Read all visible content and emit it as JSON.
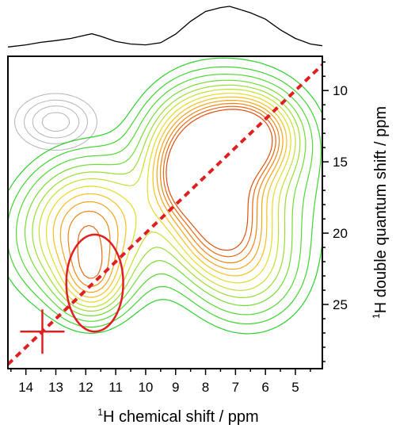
{
  "chart_data": {
    "type": "contour",
    "xlabel_prefix": "1",
    "xlabel": "H chemical shift / ppm",
    "ylabel_prefix": "1",
    "ylabel": "H double quantum shift / ppm",
    "x_range": [
      14.6,
      4.1
    ],
    "y_range": [
      7.6,
      29.5
    ],
    "x_ticks": [
      14,
      13,
      12,
      11,
      10,
      9,
      8,
      7,
      6,
      5
    ],
    "y_ticks": [
      10,
      15,
      20,
      25
    ],
    "diagonal": {
      "label": "DQ = 2 × SQ",
      "color": "#e02020"
    },
    "circle": {
      "center": [
        11.7,
        23.5
      ],
      "radius_ppm_x": 0.95,
      "radius_ppm_y": 3.4,
      "color": "#e02020"
    },
    "cross": {
      "center": [
        13.45,
        26.9
      ],
      "color": "#e02020"
    },
    "top_projection": {
      "x": [
        14.6,
        14.0,
        13.5,
        13.0,
        12.5,
        12.0,
        11.8,
        11.5,
        11.0,
        10.5,
        10.0,
        9.5,
        9.0,
        8.5,
        8.0,
        7.5,
        7.2,
        7.0,
        6.5,
        6.0,
        5.5,
        5.0,
        4.5,
        4.1
      ],
      "y": [
        0.05,
        0.1,
        0.16,
        0.2,
        0.25,
        0.33,
        0.36,
        0.3,
        0.18,
        0.12,
        0.1,
        0.15,
        0.35,
        0.65,
        0.88,
        0.97,
        1.0,
        0.96,
        0.85,
        0.7,
        0.45,
        0.25,
        0.12,
        0.08
      ]
    },
    "peaks": [
      {
        "x": 11.9,
        "y": 19.5,
        "sx": 1.3,
        "sy": 3.0,
        "amp": 0.58
      },
      {
        "x": 11.8,
        "y": 23.5,
        "sx": 0.7,
        "sy": 1.7,
        "amp": 0.4
      },
      {
        "x": 8.2,
        "y": 14.5,
        "sx": 1.1,
        "sy": 2.6,
        "amp": 0.85
      },
      {
        "x": 6.6,
        "y": 13.2,
        "sx": 1.0,
        "sy": 1.9,
        "amp": 0.8
      },
      {
        "x": 7.5,
        "y": 19.4,
        "sx": 1.0,
        "sy": 2.4,
        "amp": 0.65
      },
      {
        "x": 8.6,
        "y": 16.4,
        "sx": 0.6,
        "sy": 1.6,
        "amp": 0.35
      },
      {
        "x": 7.0,
        "y": 16.0,
        "sx": 1.9,
        "sy": 4.5,
        "amp": 0.38
      },
      {
        "x": 6.5,
        "y": 22.8,
        "sx": 1.2,
        "sy": 2.6,
        "amp": 0.3
      },
      {
        "x": 12.2,
        "y": 20.5,
        "sx": 1.8,
        "sy": 3.2,
        "amp": 0.22
      }
    ],
    "artifact": {
      "x": 13.0,
      "y": 12.2,
      "sx": 0.9,
      "sy": 1.3,
      "amp": 0.16,
      "color": "#b4b4b4"
    },
    "levels": [
      0.1,
      0.15,
      0.21,
      0.28,
      0.35,
      0.42,
      0.5,
      0.58,
      0.66,
      0.74,
      0.82,
      0.9
    ],
    "colors": [
      "#2bd02b",
      "#3ed430",
      "#52d834",
      "#72dc36",
      "#98de34",
      "#c2e030",
      "#e3dc28",
      "#f2c21f",
      "#f3a41a",
      "#ee8616",
      "#e66a12",
      "#de5010"
    ]
  }
}
